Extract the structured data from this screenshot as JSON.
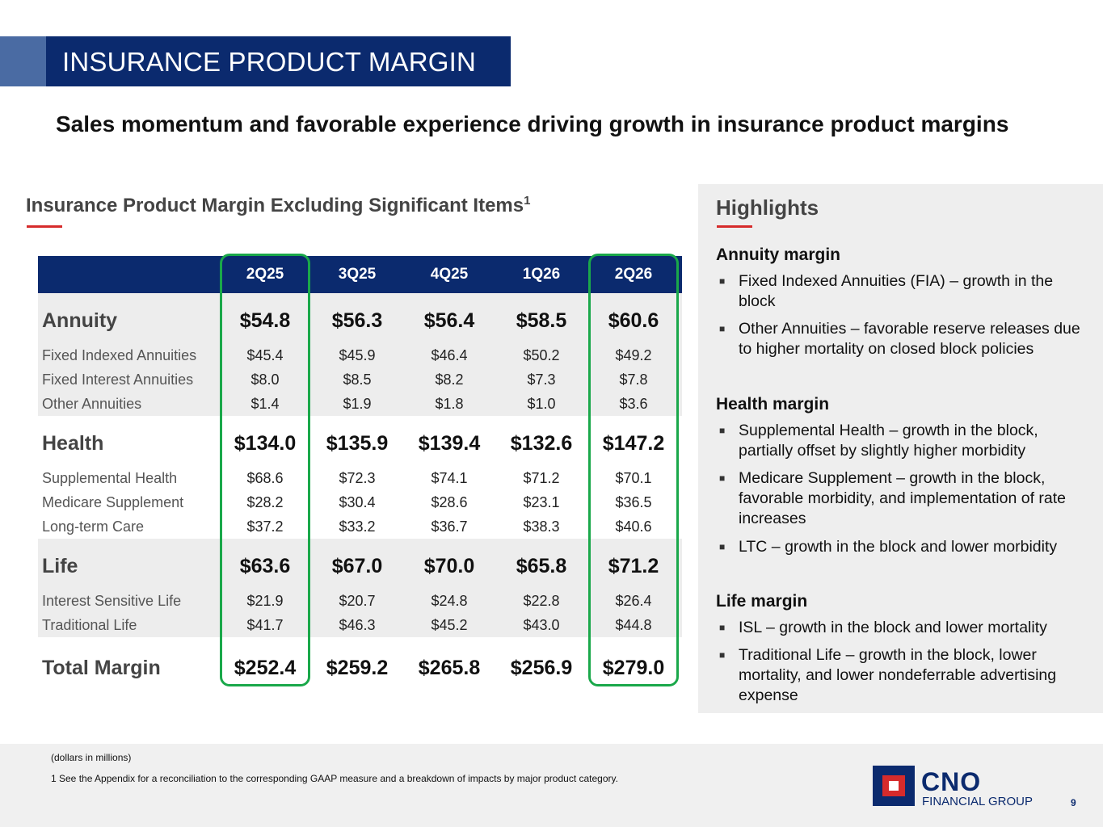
{
  "header": {
    "title": "INSURANCE PRODUCT MARGIN",
    "subtitle": "Sales momentum and favorable experience driving growth in insurance product margins"
  },
  "table": {
    "heading": "Insurance Product Margin Excluding Significant Items",
    "heading_sup": "1",
    "columns": [
      "2Q25",
      "3Q25",
      "4Q25",
      "1Q26",
      "2Q26"
    ],
    "groups": [
      {
        "label": "Annuity",
        "values": [
          "$54.8",
          "$56.3",
          "$56.4",
          "$58.5",
          "$60.6"
        ],
        "rows": [
          {
            "label": "Fixed Indexed Annuities",
            "values": [
              "$45.4",
              "$45.9",
              "$46.4",
              "$50.2",
              "$49.2"
            ]
          },
          {
            "label": "Fixed Interest Annuities",
            "values": [
              "$8.0",
              "$8.5",
              "$8.2",
              "$7.3",
              "$7.8"
            ]
          },
          {
            "label": "Other Annuities",
            "values": [
              "$1.4",
              "$1.9",
              "$1.8",
              "$1.0",
              "$3.6"
            ]
          }
        ]
      },
      {
        "label": "Health",
        "values": [
          "$134.0",
          "$135.9",
          "$139.4",
          "$132.6",
          "$147.2"
        ],
        "rows": [
          {
            "label": "Supplemental Health",
            "values": [
              "$68.6",
              "$72.3",
              "$74.1",
              "$71.2",
              "$70.1"
            ]
          },
          {
            "label": "Medicare Supplement",
            "values": [
              "$28.2",
              "$30.4",
              "$28.6",
              "$23.1",
              "$36.5"
            ]
          },
          {
            "label": "Long-term Care",
            "values": [
              "$37.2",
              "$33.2",
              "$36.7",
              "$38.3",
              "$40.6"
            ]
          }
        ]
      },
      {
        "label": "Life",
        "values": [
          "$63.6",
          "$67.0",
          "$70.0",
          "$65.8",
          "$71.2"
        ],
        "rows": [
          {
            "label": "Interest Sensitive Life",
            "values": [
              "$21.9",
              "$20.7",
              "$24.8",
              "$22.8",
              "$26.4"
            ]
          },
          {
            "label": "Traditional Life",
            "values": [
              "$41.7",
              "$46.3",
              "$45.2",
              "$43.0",
              "$44.8"
            ]
          }
        ]
      }
    ],
    "total": {
      "label": "Total Margin",
      "values": [
        "$252.4",
        "$259.2",
        "$265.8",
        "$256.9",
        "$279.0"
      ]
    }
  },
  "highlights": {
    "title": "Highlights",
    "sections": [
      {
        "title": "Annuity margin",
        "bullets": [
          "Fixed Indexed Annuities (FIA) – growth in the block",
          "Other Annuities – favorable reserve releases due to higher mortality on closed block policies"
        ]
      },
      {
        "title": "Health margin",
        "bullets": [
          "Supplemental Health – growth in the block, partially offset by slightly higher morbidity",
          "Medicare Supplement – growth in the block, favorable morbidity, and implementation of rate increases",
          "LTC – growth in the block and lower morbidity"
        ]
      },
      {
        "title": "Life margin",
        "bullets": [
          "ISL – growth in the block and lower mortality",
          "Traditional Life – growth in the block, lower mortality, and lower nondeferrable advertising expense"
        ]
      }
    ]
  },
  "footer": {
    "note1": "(dollars in millions)",
    "note2": "1 See the Appendix for a reconciliation to the corresponding GAAP measure and a breakdown of impacts by major product category.",
    "logo_name": "CNO",
    "logo_sub": "FINANCIAL GROUP",
    "page_number": "9"
  },
  "colors": {
    "navy": "#0b2a6e",
    "accent_red": "#d62b2b",
    "highlight_green": "#1aa84a"
  }
}
